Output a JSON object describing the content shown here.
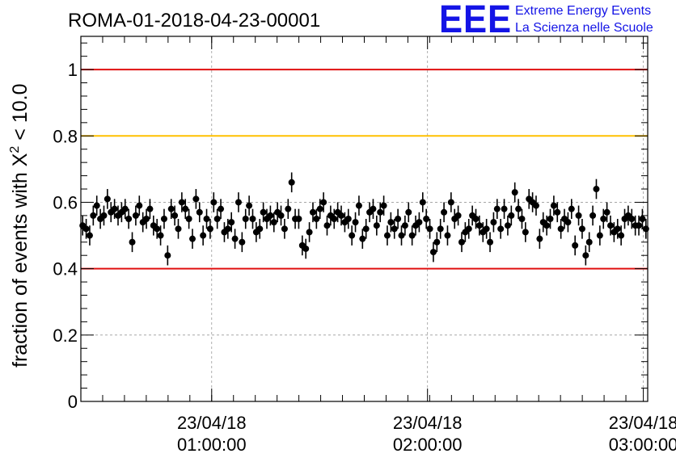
{
  "header": {
    "title": "ROMA-01-2018-04-23-00001",
    "logo_text": "EEE",
    "logo_line1": "Extreme Energy Events",
    "logo_line2": "La Scienza nelle Scuole"
  },
  "colors": {
    "red_line": "#e01010",
    "orange_line": "#ffc000",
    "logo": "#1414e6",
    "marker": "#000000"
  },
  "chart_data": {
    "type": "scatter",
    "title": "ROMA-01-2018-04-23-00001",
    "ylabel_prefix": "fraction of events with ",
    "ylabel_chi": "X",
    "ylabel_sup": "2",
    "ylabel_suffix": " < 10.0",
    "ylim": [
      0,
      1.1
    ],
    "xlim_minutes": [
      0,
      130
    ],
    "grid": true,
    "y_ticks": [
      {
        "value": 0,
        "label": "0"
      },
      {
        "value": 0.2,
        "label": "0.2"
      },
      {
        "value": 0.4,
        "label": "0.4"
      },
      {
        "value": 0.6,
        "label": "0.6"
      },
      {
        "value": 0.8,
        "label": "0.8"
      },
      {
        "value": 1,
        "label": "1"
      }
    ],
    "x_ticks": [
      {
        "minute": 30,
        "date": "23/04/18",
        "time": "01:00:00"
      },
      {
        "minute": 79.5,
        "date": "23/04/18",
        "time": "02:00:00"
      },
      {
        "minute": 129,
        "date": "23/04/18",
        "time": "03:00:00"
      }
    ],
    "reference_lines": [
      {
        "value": 1.0,
        "color": "#e01010"
      },
      {
        "value": 0.8,
        "color": "#ffc000"
      },
      {
        "value": 0.4,
        "color": "#e01010"
      }
    ],
    "error": 0.03,
    "values": [
      0.53,
      0.52,
      0.5,
      0.56,
      0.59,
      0.55,
      0.56,
      0.61,
      0.57,
      0.58,
      0.56,
      0.57,
      0.58,
      0.55,
      0.48,
      0.56,
      0.59,
      0.54,
      0.55,
      0.58,
      0.53,
      0.52,
      0.5,
      0.55,
      0.44,
      0.58,
      0.56,
      0.52,
      0.6,
      0.58,
      0.55,
      0.49,
      0.61,
      0.57,
      0.5,
      0.55,
      0.52,
      0.6,
      0.55,
      0.58,
      0.51,
      0.52,
      0.54,
      0.49,
      0.6,
      0.48,
      0.55,
      0.59,
      0.55,
      0.51,
      0.52,
      0.57,
      0.55,
      0.56,
      0.54,
      0.57,
      0.56,
      0.52,
      0.58,
      0.66,
      0.55,
      0.55,
      0.47,
      0.46,
      0.51,
      0.57,
      0.55,
      0.58,
      0.6,
      0.53,
      0.56,
      0.55,
      0.57,
      0.56,
      0.54,
      0.55,
      0.5,
      0.54,
      0.59,
      0.49,
      0.52,
      0.57,
      0.58,
      0.53,
      0.57,
      0.59,
      0.5,
      0.54,
      0.52,
      0.55,
      0.5,
      0.53,
      0.57,
      0.5,
      0.53,
      0.54,
      0.6,
      0.55,
      0.52,
      0.45,
      0.48,
      0.52,
      0.57,
      0.5,
      0.6,
      0.55,
      0.56,
      0.48,
      0.51,
      0.52,
      0.56,
      0.55,
      0.53,
      0.51,
      0.52,
      0.48,
      0.54,
      0.58,
      0.52,
      0.58,
      0.53,
      0.56,
      0.63,
      0.58,
      0.55,
      0.51,
      0.61,
      0.6,
      0.59,
      0.49,
      0.54,
      0.53,
      0.55,
      0.59,
      0.57,
      0.52,
      0.55,
      0.54,
      0.58,
      0.47,
      0.56,
      0.52,
      0.44,
      0.48,
      0.56,
      0.64,
      0.5,
      0.55,
      0.57,
      0.53,
      0.51,
      0.52,
      0.5,
      0.55,
      0.56,
      0.55,
      0.53,
      0.53,
      0.55,
      0.52
    ]
  }
}
